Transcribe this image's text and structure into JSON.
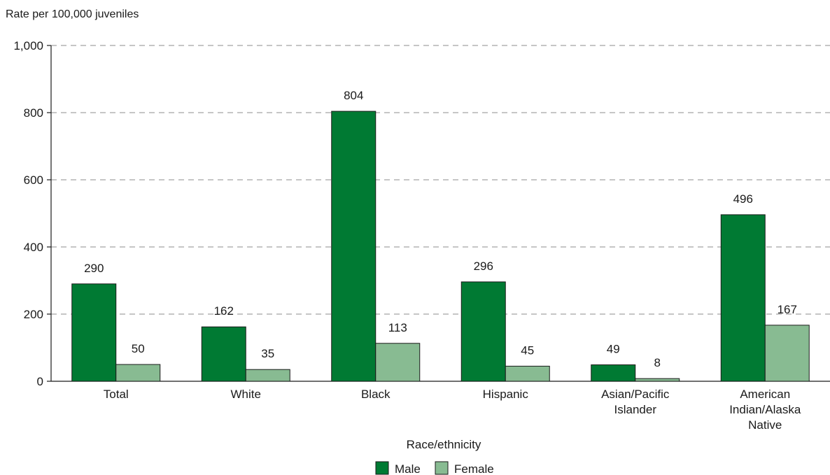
{
  "chart_data": {
    "type": "bar",
    "ylabel": "Rate per 100,000 juveniles",
    "xlabel": "Race/ethnicity",
    "ylim": [
      0,
      1000
    ],
    "yticks": [
      0,
      200,
      400,
      600,
      800,
      1000
    ],
    "ytick_labels": [
      "0",
      "200",
      "400",
      "600",
      "800",
      "1,000"
    ],
    "grid": true,
    "legend_position": "bottom-center",
    "categories": [
      [
        "Total"
      ],
      [
        "White"
      ],
      [
        "Black"
      ],
      [
        "Hispanic"
      ],
      [
        "Asian/Pacific",
        "Islander"
      ],
      [
        "American",
        "Indian/Alaska",
        "Native"
      ]
    ],
    "series": [
      {
        "name": "Male",
        "color": "#007a33",
        "values": [
          290,
          162,
          804,
          296,
          49,
          496
        ]
      },
      {
        "name": "Female",
        "color": "#88bb92",
        "values": [
          50,
          35,
          113,
          45,
          8,
          167
        ]
      }
    ]
  }
}
